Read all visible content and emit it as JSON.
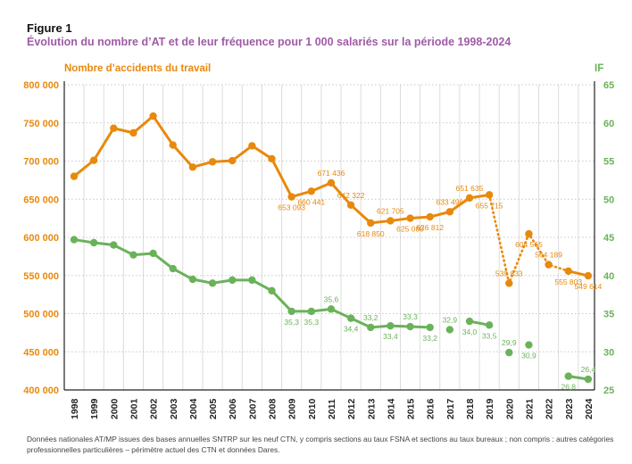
{
  "figure_label": "Figure 1",
  "title": "Évolution du nombre d’AT et de leur fréquence pour 1 000 salariés sur la période 1998-2024",
  "footnote": "Données nationales AT/MP issues des bases annuelles SNTRP sur les neuf CTN, y compris sections au taux FSNA et sections au taux bureaux ; non compris : autres catégories professionnelles particulières – périmètre actuel des CTN et données Dares.",
  "chart_data": {
    "type": "line",
    "x": [
      1998,
      1999,
      2000,
      2001,
      2002,
      2003,
      2004,
      2005,
      2006,
      2007,
      2008,
      2009,
      2010,
      2011,
      2012,
      2013,
      2014,
      2015,
      2016,
      2017,
      2018,
      2019,
      2020,
      2021,
      2022,
      2023,
      2024
    ],
    "y_left": {
      "label": "Nombre d’accidents du travail",
      "range": [
        400000,
        800000
      ],
      "ticks": [
        "400 000",
        "450 000",
        "500 000",
        "550 000",
        "600 000",
        "650 000",
        "700 000",
        "750 000",
        "800 000"
      ]
    },
    "y_right": {
      "label": "IF",
      "range": [
        25,
        65
      ],
      "ticks": [
        "25",
        "30",
        "35",
        "40",
        "45",
        "50",
        "55",
        "60",
        "65"
      ]
    },
    "grid": true,
    "series": [
      {
        "name": "Nombre d’accidents du travail",
        "axis": "left",
        "color": "#e8890c",
        "values": [
          680000,
          701000,
          743000,
          737000,
          759000,
          721000,
          692000,
          699000,
          700500,
          720000,
          703000,
          653093,
          660441,
          671436,
          642322,
          618850,
          621705,
          625080,
          626812,
          633496,
          651635,
          655715,
          539833,
          604565,
          564189,
          555803,
          549614
        ],
        "labels": [
          null,
          null,
          null,
          null,
          null,
          null,
          null,
          null,
          null,
          null,
          null,
          "653 093",
          "660 441",
          "671 436",
          "642 322",
          "618 850",
          "621 705",
          "625 080",
          "626 812",
          "633 496",
          "651 635",
          "655 715",
          "539 833",
          "604 565",
          "564 189",
          "555 803",
          "549 614"
        ],
        "solid_ranges": [
          [
            1998,
            2019
          ],
          [
            2023,
            2024
          ]
        ],
        "dotted_ranges": [
          [
            2019,
            2023
          ]
        ]
      },
      {
        "name": "IF",
        "axis": "right",
        "color": "#6ab25a",
        "values": [
          44.7,
          44.3,
          44.0,
          42.7,
          42.9,
          40.9,
          39.5,
          39.0,
          39.4,
          39.4,
          38.0,
          35.3,
          35.3,
          35.6,
          34.4,
          33.2,
          33.4,
          33.3,
          33.2,
          32.9,
          34.0,
          33.5,
          29.9,
          30.9,
          null,
          26.8,
          26.4
        ],
        "labels": [
          null,
          null,
          null,
          null,
          null,
          null,
          null,
          null,
          null,
          null,
          null,
          "35,3",
          "35,3",
          "35,6",
          "34,4",
          "33,2",
          "33,4",
          "33,3",
          "33,2",
          "32,9",
          "34,0",
          "33,5",
          "29,9",
          "30,9",
          null,
          "26,8",
          "26,4"
        ],
        "solid_ranges": [
          [
            1998,
            2016
          ],
          [
            2018,
            2019
          ],
          [
            2023,
            2024
          ]
        ]
      }
    ]
  }
}
